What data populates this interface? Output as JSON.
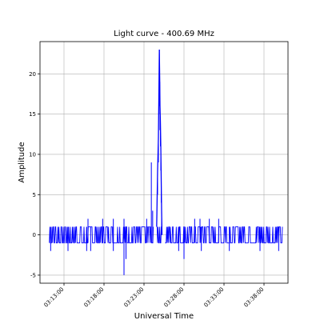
{
  "chart_data": {
    "type": "line",
    "title": "Light curve - 400.69 MHz",
    "xlabel": "Universal Time",
    "ylabel": "Amplitude",
    "xlim": [
      "03:10:00",
      "03:41:00"
    ],
    "ylim": [
      -6,
      24
    ],
    "grid": true,
    "series_color": "#0000ff",
    "x_ticks": [
      "03:13:00",
      "03:18:00",
      "03:23:00",
      "03:28:00",
      "03:33:00",
      "03:38:00"
    ],
    "y_ticks": [
      -5,
      0,
      5,
      10,
      15,
      20
    ],
    "series": [
      {
        "x_start": "03:11:10",
        "x_end": "03:40:20",
        "baseline": {
          "low": -1,
          "high": 1
        },
        "dips": [
          {
            "time": "03:11:20",
            "value": -2
          },
          {
            "time": "03:13:30",
            "value": -2
          },
          {
            "time": "03:15:50",
            "value": -2
          },
          {
            "time": "03:16:20",
            "value": -2
          },
          {
            "time": "03:19:10",
            "value": -2
          },
          {
            "time": "03:20:30",
            "value": -5
          },
          {
            "time": "03:20:45",
            "value": -3
          },
          {
            "time": "03:27:20",
            "value": -2
          },
          {
            "time": "03:28:00",
            "value": -3
          },
          {
            "time": "03:30:10",
            "value": -2
          },
          {
            "time": "03:33:40",
            "value": -2
          },
          {
            "time": "03:37:30",
            "value": -2
          },
          {
            "time": "03:39:50",
            "value": -2
          }
        ],
        "peaks": [
          {
            "time": "03:16:00",
            "value": 2
          },
          {
            "time": "03:17:50",
            "value": 2
          },
          {
            "time": "03:19:10",
            "value": 2
          },
          {
            "time": "03:20:30",
            "value": 2
          },
          {
            "time": "03:23:20",
            "value": 2
          },
          {
            "time": "03:23:55",
            "value": 9
          },
          {
            "time": "03:24:05",
            "value": 3
          },
          {
            "time": "03:29:20",
            "value": 2
          },
          {
            "time": "03:30:00",
            "value": 2
          },
          {
            "time": "03:31:10",
            "value": 2
          },
          {
            "time": "03:32:20",
            "value": 2
          }
        ],
        "flare": [
          {
            "time": "03:24:35",
            "value": 1
          },
          {
            "time": "03:24:42",
            "value": 8
          },
          {
            "time": "03:24:48",
            "value": 12
          },
          {
            "time": "03:24:52",
            "value": 18
          },
          {
            "time": "03:24:55",
            "value": 23
          },
          {
            "time": "03:24:58",
            "value": 19
          },
          {
            "time": "03:25:00",
            "value": 16
          },
          {
            "time": "03:25:03",
            "value": 14
          },
          {
            "time": "03:25:06",
            "value": 11
          },
          {
            "time": "03:25:09",
            "value": 7
          },
          {
            "time": "03:25:12",
            "value": 3
          },
          {
            "time": "03:25:15",
            "value": 0
          }
        ],
        "gaps": [
          {
            "from": "03:24:10",
            "to": "03:24:35"
          },
          {
            "from": "03:25:15",
            "to": "03:25:35"
          }
        ]
      }
    ]
  }
}
